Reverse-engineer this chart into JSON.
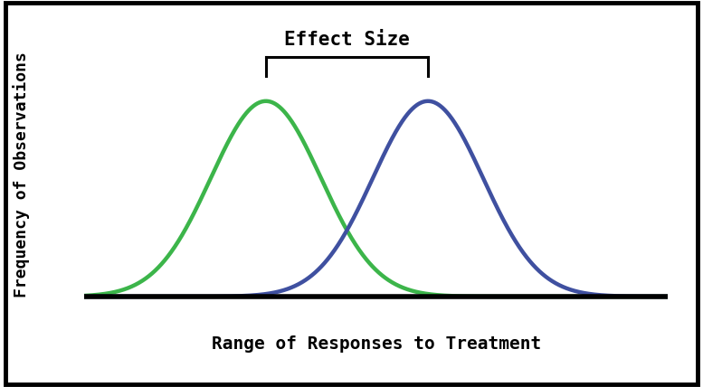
{
  "title": "Effect Size",
  "xlabel": "Range of Responses to Treatment",
  "ylabel": "Frequency of Observations",
  "mean1": -1.0,
  "mean2": 1.5,
  "std": 0.85,
  "green_color": "#3cb54a",
  "blue_color": "#3f50a0",
  "line_width": 3.2,
  "background_color": "#ffffff",
  "xlim": [
    -3.8,
    5.2
  ],
  "ylim": [
    -0.05,
    0.62
  ],
  "xlabel_fontsize": 14,
  "ylabel_fontsize": 13,
  "title_fontsize": 15,
  "bracket_color": "#000000",
  "axis_linewidth": 4.0,
  "border_linewidth": 3.5
}
